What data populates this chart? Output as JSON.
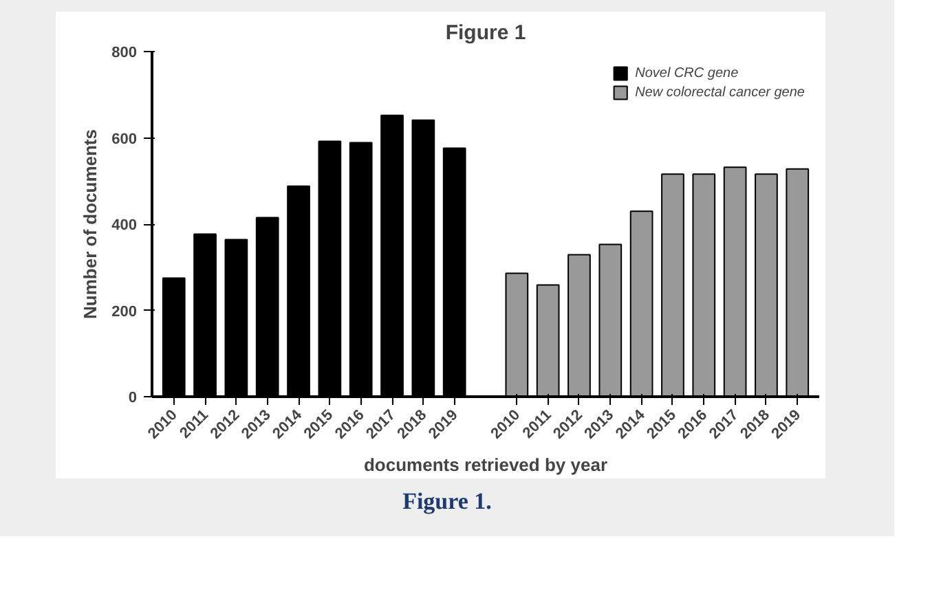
{
  "chart_data": {
    "type": "bar",
    "title": "Figure 1",
    "xlabel": "documents retrieved by year",
    "ylabel": "Number of documents",
    "categories": [
      "2010",
      "2011",
      "2012",
      "2013",
      "2014",
      "2015",
      "2016",
      "2017",
      "2018",
      "2019",
      null,
      "2010",
      "2011",
      "2012",
      "2013",
      "2014",
      "2015",
      "2016",
      "2017",
      "2018",
      "2019"
    ],
    "series": [
      {
        "name": "Novel CRC gene",
        "color": "#000000",
        "values": [
          275,
          377,
          364,
          415,
          488,
          592,
          589,
          652,
          641,
          576,
          null,
          null,
          null,
          null,
          null,
          null,
          null,
          null,
          null,
          null,
          null
        ]
      },
      {
        "name": "New colorectal cancer gene",
        "color": "#999999",
        "values": [
          null,
          null,
          null,
          null,
          null,
          null,
          null,
          null,
          null,
          null,
          null,
          286,
          259,
          329,
          353,
          430,
          516,
          516,
          532,
          516,
          528
        ]
      }
    ],
    "ylim": [
      0,
      800
    ],
    "yticks": [
      0,
      200,
      400,
      600,
      800
    ],
    "grid": false,
    "legend": "top right",
    "annotations": [
      "Figure 1."
    ]
  }
}
